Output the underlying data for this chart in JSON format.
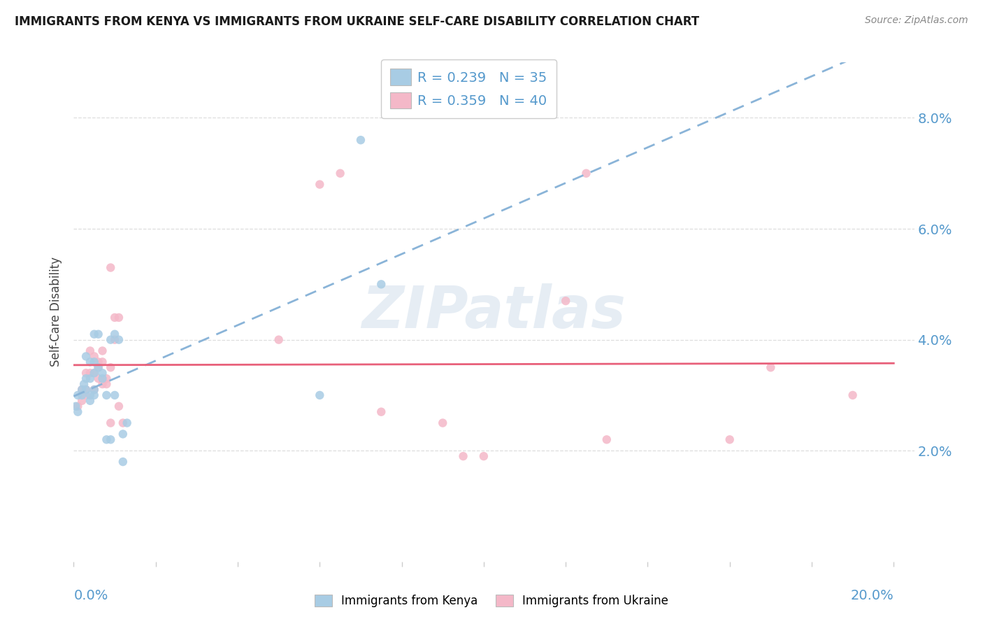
{
  "title": "IMMIGRANTS FROM KENYA VS IMMIGRANTS FROM UKRAINE SELF-CARE DISABILITY CORRELATION CHART",
  "source": "Source: ZipAtlas.com",
  "ylabel": "Self-Care Disability",
  "legend_kenya_r": "R = 0.239",
  "legend_kenya_n": "N = 35",
  "legend_ukraine_r": "R = 0.359",
  "legend_ukraine_n": "N = 40",
  "kenya_color": "#a8cce4",
  "ukraine_color": "#f4b8c8",
  "kenya_line_color": "#5a9fd4",
  "ukraine_line_color": "#e8607a",
  "xlim": [
    0.0,
    0.205
  ],
  "ylim": [
    0.0,
    0.09
  ],
  "yticks": [
    0.02,
    0.04,
    0.06,
    0.08
  ],
  "ytick_labels": [
    "2.0%",
    "4.0%",
    "6.0%",
    "8.0%"
  ],
  "right_tick_color": "#5599cc",
  "kenya_x": [
    0.0005,
    0.001,
    0.001,
    0.002,
    0.002,
    0.0025,
    0.003,
    0.003,
    0.003,
    0.004,
    0.004,
    0.004,
    0.004,
    0.005,
    0.005,
    0.005,
    0.005,
    0.005,
    0.006,
    0.006,
    0.007,
    0.007,
    0.008,
    0.008,
    0.009,
    0.009,
    0.01,
    0.01,
    0.011,
    0.012,
    0.012,
    0.013,
    0.06,
    0.07,
    0.075
  ],
  "kenya_y": [
    0.028,
    0.027,
    0.03,
    0.031,
    0.03,
    0.032,
    0.031,
    0.033,
    0.037,
    0.029,
    0.03,
    0.033,
    0.036,
    0.03,
    0.031,
    0.034,
    0.036,
    0.041,
    0.035,
    0.041,
    0.033,
    0.034,
    0.03,
    0.022,
    0.022,
    0.04,
    0.03,
    0.041,
    0.04,
    0.023,
    0.018,
    0.025,
    0.03,
    0.076,
    0.05
  ],
  "ukraine_x": [
    0.001,
    0.002,
    0.002,
    0.003,
    0.003,
    0.003,
    0.004,
    0.004,
    0.005,
    0.005,
    0.005,
    0.006,
    0.006,
    0.006,
    0.007,
    0.007,
    0.007,
    0.008,
    0.008,
    0.009,
    0.009,
    0.009,
    0.01,
    0.01,
    0.011,
    0.011,
    0.012,
    0.05,
    0.06,
    0.065,
    0.075,
    0.09,
    0.095,
    0.1,
    0.12,
    0.125,
    0.13,
    0.16,
    0.17,
    0.19
  ],
  "ukraine_y": [
    0.028,
    0.029,
    0.031,
    0.03,
    0.031,
    0.034,
    0.034,
    0.038,
    0.031,
    0.034,
    0.037,
    0.033,
    0.035,
    0.036,
    0.032,
    0.036,
    0.038,
    0.032,
    0.033,
    0.025,
    0.035,
    0.053,
    0.04,
    0.044,
    0.044,
    0.028,
    0.025,
    0.04,
    0.068,
    0.07,
    0.027,
    0.025,
    0.019,
    0.019,
    0.047,
    0.07,
    0.022,
    0.022,
    0.035,
    0.03
  ],
  "background_color": "#ffffff",
  "grid_color": "#dedede",
  "watermark": "ZIPatlas"
}
